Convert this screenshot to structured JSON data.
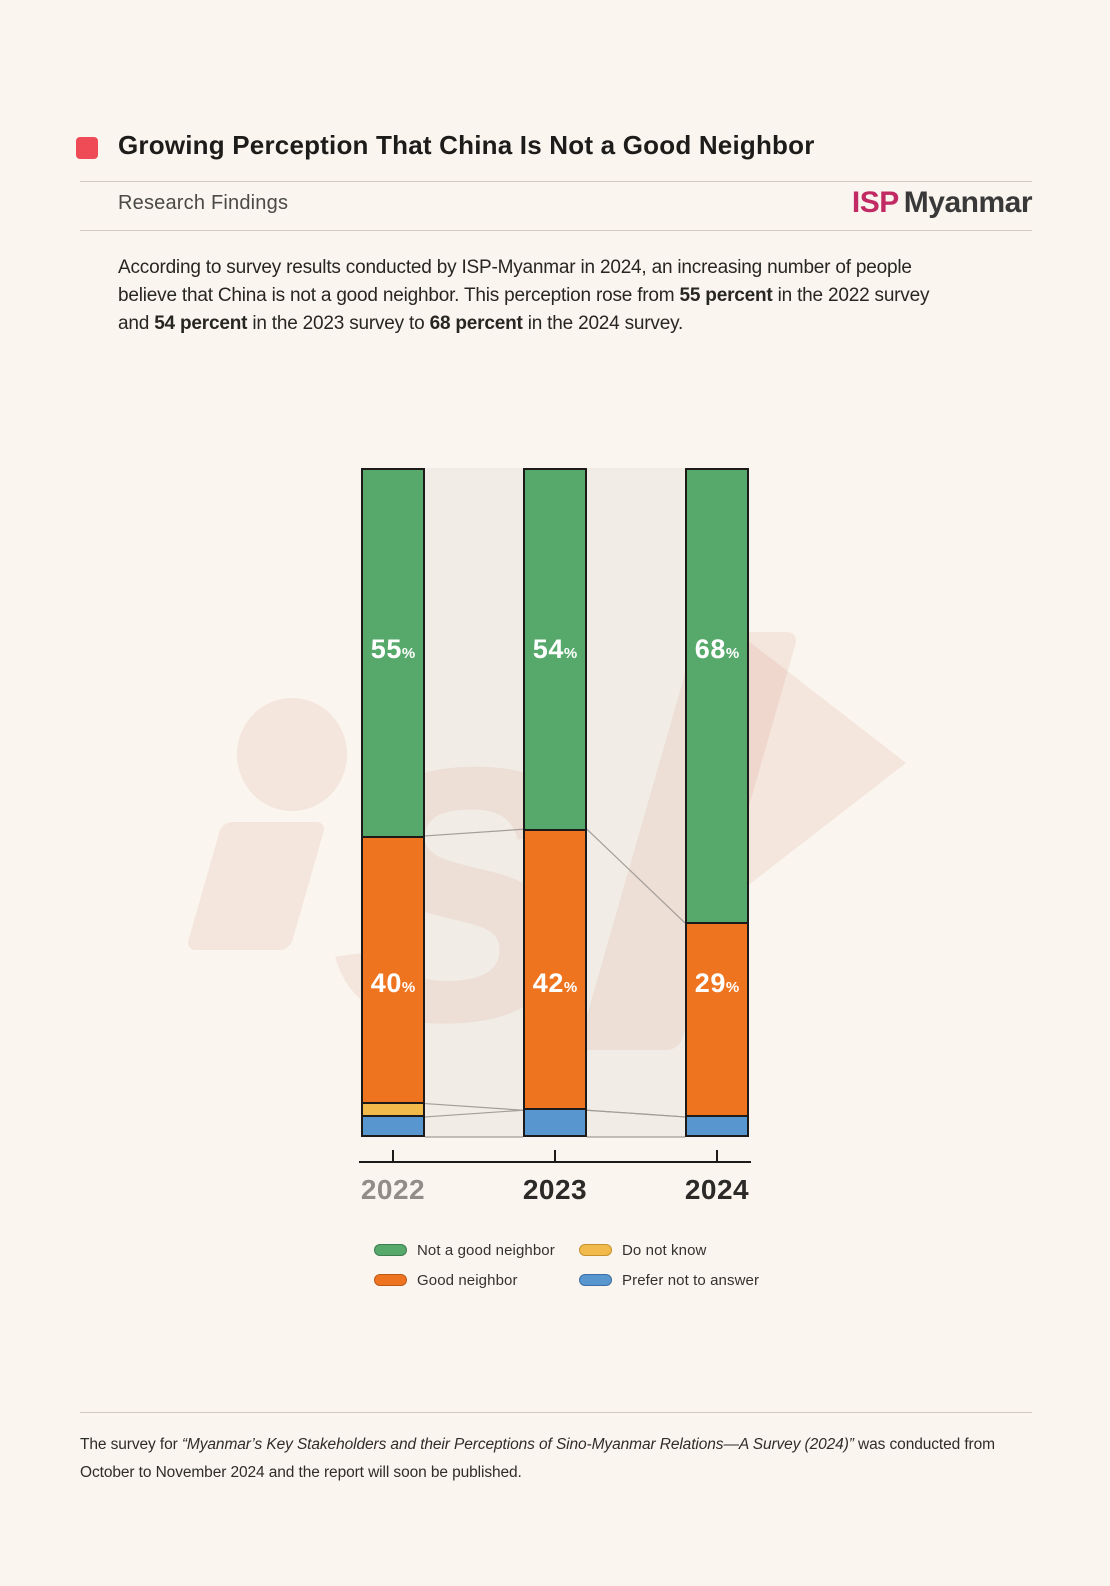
{
  "page": {
    "background": "#faf5ee"
  },
  "header": {
    "bullet_color": "#ee4b57",
    "title": "Growing Perception That China Is Not a Good Neighbor",
    "section_label": "Research Findings",
    "logo": {
      "isp": "ISP",
      "myanmar": "Myanmar",
      "isp_color": "#c12a63",
      "myanmar_color": "#3a393a"
    }
  },
  "intro": {
    "segments": [
      {
        "text": "According to survey results conducted by ISP-Myanmar in 2024, an increasing number of people"
      },
      {
        "br": true
      },
      {
        "text": "believe that China is not a good neighbor. This perception rose from "
      },
      {
        "text": "55 percent",
        "bold": true
      },
      {
        "text": " in the 2022 survey"
      },
      {
        "br": true
      },
      {
        "text": "and "
      },
      {
        "text": "54 percent",
        "bold": true
      },
      {
        "text": " in the 2023 survey to "
      },
      {
        "text": "68 percent",
        "bold": true
      },
      {
        "text": " in the 2024 survey."
      }
    ]
  },
  "chart_data": {
    "type": "bar",
    "stacked": true,
    "orientation": "vertical",
    "title": "Perception of China as a neighbor (ISP-Myanmar survey)",
    "categories": [
      "2022",
      "2023",
      "2024"
    ],
    "series": [
      {
        "name": "Not a good neighbor",
        "color": "#57a96b",
        "stroke": "#3e7d51",
        "values": [
          55,
          54,
          68
        ],
        "show_labels": true
      },
      {
        "name": "Good neighbor",
        "color": "#ef7420",
        "stroke": "#bb5a16",
        "values": [
          40,
          42,
          29
        ],
        "show_labels": true
      },
      {
        "name": "Do not know",
        "color": "#f2ba4b",
        "stroke": "#c6922f",
        "values": [
          2,
          0,
          0
        ],
        "show_labels": false
      },
      {
        "name": "Prefer not to answer",
        "color": "#5896cf",
        "stroke": "#3d6fa3",
        "values": [
          3,
          4,
          3
        ],
        "show_labels": false
      }
    ],
    "value_suffix": "%",
    "ylim": [
      0,
      100
    ],
    "grid": false,
    "plot_background": "#f1ede6",
    "bar_border_color": "#1c1b19",
    "connector_color": "#a39e97",
    "x_axis": {
      "line_color": "#1c1b19",
      "labels": [
        {
          "text": "2022",
          "color": "#908d88"
        },
        {
          "text": "2023",
          "color": "#2b2a28"
        },
        {
          "text": "2024",
          "color": "#2b2a28"
        }
      ]
    },
    "legend": {
      "position": "bottom",
      "rows": [
        [
          0,
          2
        ],
        [
          1,
          3
        ]
      ]
    }
  },
  "footer": {
    "segments": [
      {
        "text": "The survey for "
      },
      {
        "text": "“Myanmar’s Key Stakeholders and their Perceptions of Sino-Myanmar Relations—A Survey (2024)”",
        "italic": true
      },
      {
        "text": " was conducted from"
      },
      {
        "br": true
      },
      {
        "text": "October to November 2024 and the report will soon be published."
      }
    ]
  }
}
